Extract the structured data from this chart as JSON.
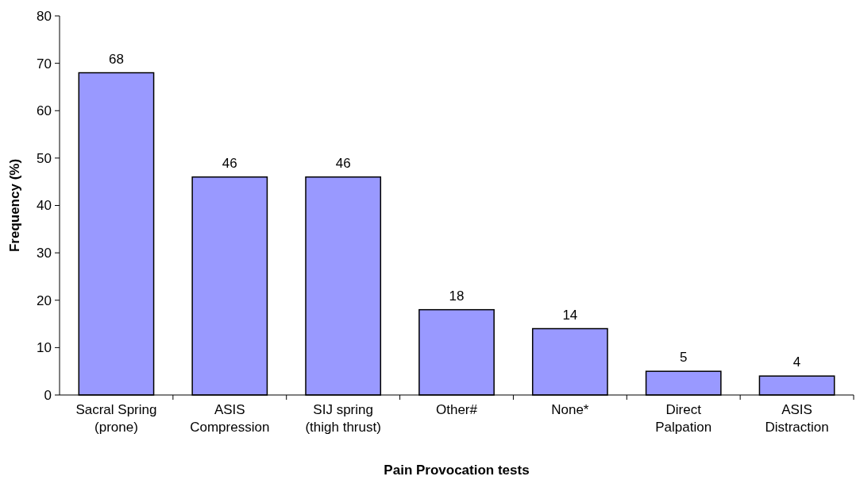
{
  "chart_data": {
    "type": "bar",
    "xlabel": "Pain Provocation tests",
    "ylabel": "Frequency (%)",
    "categories": [
      "Sacral Spring (prone)",
      "ASIS Compression",
      "SIJ spring (thigh thrust)",
      "Other#",
      "None*",
      "Direct Palpation",
      "ASIS Distraction"
    ],
    "values": [
      68,
      46,
      46,
      18,
      14,
      5,
      4
    ],
    "color": "#9999ff",
    "data_labels": true,
    "ylim": [
      0,
      80
    ],
    "yticks": [
      0,
      10,
      20,
      30,
      40,
      50,
      60,
      70,
      80
    ],
    "grid": false
  }
}
